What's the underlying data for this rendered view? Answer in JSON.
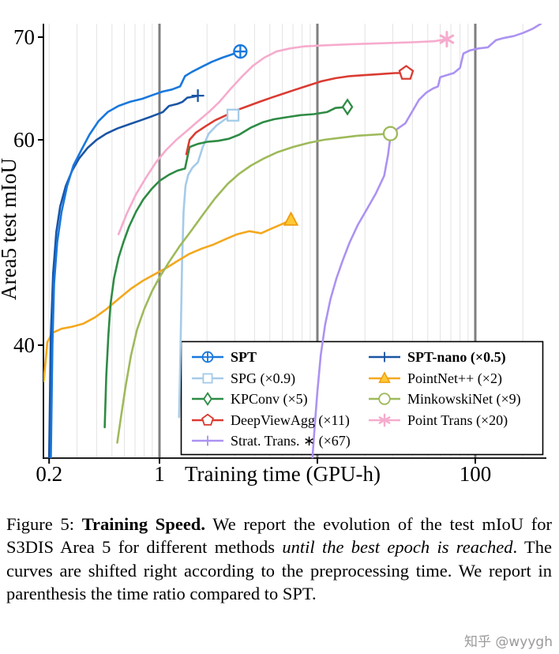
{
  "chart_data": {
    "type": "line",
    "xlabel": "Training time (GPU-h)",
    "ylabel": "Area5 test mIoU",
    "x_scale": "log",
    "x_range": [
      0.184,
      282
    ],
    "y_range": [
      29,
      71.3
    ],
    "x_ticks": [
      {
        "v": 0.2,
        "label": "0.2"
      },
      {
        "v": 1,
        "label": "1"
      },
      {
        "v": 10,
        "label": ""
      },
      {
        "v": 100,
        "label": "100"
      }
    ],
    "y_ticks": [
      {
        "v": 40,
        "label": "40"
      },
      {
        "v": 60,
        "label": "60"
      },
      {
        "v": 70,
        "label": "70"
      }
    ],
    "x_major_gridlines": [
      1,
      10,
      100
    ],
    "grid": "vertical-log",
    "legend_position": "lower-right",
    "colors": {
      "major_grid": "#7f7f7f",
      "minor_grid": "#e3e3e3",
      "axis": "#000000"
    },
    "series": [
      {
        "name": "SPT",
        "legend_label": "SPT",
        "bold": true,
        "color": "#1878dd",
        "marker": "circle-plus",
        "end_marker": true,
        "points": [
          [
            0.205,
            29
          ],
          [
            0.21,
            40
          ],
          [
            0.215,
            46
          ],
          [
            0.225,
            50
          ],
          [
            0.24,
            53
          ],
          [
            0.26,
            55.5
          ],
          [
            0.285,
            57.5
          ],
          [
            0.32,
            59
          ],
          [
            0.36,
            60.5
          ],
          [
            0.41,
            61.8
          ],
          [
            0.47,
            62.7
          ],
          [
            0.55,
            63.3
          ],
          [
            0.65,
            63.7
          ],
          [
            0.78,
            64
          ],
          [
            0.92,
            64.4
          ],
          [
            1.05,
            64.7
          ],
          [
            1.2,
            64.9
          ],
          [
            1.35,
            65.2
          ],
          [
            1.45,
            66.2
          ],
          [
            1.6,
            66.6
          ],
          [
            1.85,
            67.1
          ],
          [
            2.15,
            67.6
          ],
          [
            2.5,
            68
          ],
          [
            2.85,
            68.3
          ],
          [
            3.25,
            68.6
          ]
        ]
      },
      {
        "name": "SPG",
        "legend_label": "SPG (×0.9)",
        "bold": false,
        "color": "#a5cbe9",
        "marker": "square",
        "end_marker": true,
        "points": [
          [
            1.33,
            33
          ],
          [
            1.36,
            40
          ],
          [
            1.39,
            48
          ],
          [
            1.42,
            53
          ],
          [
            1.46,
            55.5
          ],
          [
            1.52,
            56.6
          ],
          [
            1.62,
            57.3
          ],
          [
            1.75,
            57.8
          ],
          [
            1.88,
            59.3
          ],
          [
            2.05,
            60.6
          ],
          [
            2.3,
            61.4
          ],
          [
            2.6,
            62
          ],
          [
            2.92,
            62.4
          ]
        ]
      },
      {
        "name": "KPConv",
        "legend_label": "KPConv (×5)",
        "bold": false,
        "color": "#2e8b44",
        "marker": "diamond",
        "end_marker": true,
        "points": [
          [
            0.45,
            32
          ],
          [
            0.46,
            37
          ],
          [
            0.475,
            41
          ],
          [
            0.49,
            44
          ],
          [
            0.515,
            46.5
          ],
          [
            0.55,
            48.5
          ],
          [
            0.59,
            50
          ],
          [
            0.64,
            51.5
          ],
          [
            0.71,
            53
          ],
          [
            0.79,
            54.2
          ],
          [
            0.89,
            55.2
          ],
          [
            1.0,
            56.0
          ],
          [
            1.15,
            56.6
          ],
          [
            1.3,
            57.0
          ],
          [
            1.45,
            57.2
          ],
          [
            1.55,
            59.3
          ],
          [
            1.75,
            59.6
          ],
          [
            2.0,
            59.8
          ],
          [
            2.35,
            59.9
          ],
          [
            2.75,
            60.1
          ],
          [
            3.2,
            60.5
          ],
          [
            3.8,
            61.2
          ],
          [
            4.5,
            61.7
          ],
          [
            5.3,
            62.0
          ],
          [
            6.4,
            62.2
          ],
          [
            7.8,
            62.4
          ],
          [
            9.5,
            62.5
          ],
          [
            11.5,
            62.7
          ],
          [
            13.0,
            63.1
          ],
          [
            15.5,
            63.2
          ]
        ]
      },
      {
        "name": "DeepViewAgg",
        "legend_label": "DeepViewAgg (×11)",
        "bold": false,
        "color": "#da3b32",
        "marker": "pentagon",
        "end_marker": true,
        "points": [
          [
            1.48,
            58.6
          ],
          [
            1.55,
            60.0
          ],
          [
            1.7,
            60.7
          ],
          [
            1.95,
            61.3
          ],
          [
            2.25,
            61.9
          ],
          [
            2.65,
            62.4
          ],
          [
            3.1,
            62.9
          ],
          [
            3.65,
            63.3
          ],
          [
            4.3,
            63.7
          ],
          [
            5.1,
            64.1
          ],
          [
            6.1,
            64.5
          ],
          [
            7.3,
            64.9
          ],
          [
            8.8,
            65.3
          ],
          [
            10.6,
            65.7
          ],
          [
            13,
            66.0
          ],
          [
            16,
            66.2
          ],
          [
            20,
            66.3
          ],
          [
            25,
            66.4
          ],
          [
            31,
            66.5
          ],
          [
            36.5,
            66.5
          ]
        ]
      },
      {
        "name": "Strat. Trans.",
        "legend_label": "Strat. Trans. ∗ (×67)",
        "bold": false,
        "color": "#ac92f2",
        "marker": "plus",
        "end_marker": false,
        "points": [
          [
            9.3,
            29
          ],
          [
            9.6,
            32
          ],
          [
            10.0,
            35.5
          ],
          [
            10.5,
            39
          ],
          [
            11.2,
            42
          ],
          [
            12.1,
            44.5
          ],
          [
            13.2,
            46.5
          ],
          [
            14.5,
            48.3
          ],
          [
            16,
            50
          ],
          [
            18,
            51.7
          ],
          [
            20.5,
            53.2
          ],
          [
            23.5,
            54.8
          ],
          [
            26.5,
            56.5
          ],
          [
            28,
            58.5
          ],
          [
            29,
            60.3
          ],
          [
            30.5,
            60.8
          ],
          [
            33,
            61.2
          ],
          [
            36,
            61.6
          ],
          [
            40,
            62.8
          ],
          [
            44,
            63.9
          ],
          [
            49,
            64.6
          ],
          [
            54,
            65.0
          ],
          [
            58,
            65.2
          ],
          [
            60,
            66.1
          ],
          [
            66,
            66.3
          ],
          [
            73,
            66.5
          ],
          [
            80,
            67.0
          ],
          [
            84,
            68.4
          ],
          [
            92,
            68.7
          ],
          [
            105,
            68.9
          ],
          [
            120,
            69.0
          ],
          [
            135,
            69.7
          ],
          [
            150,
            69.9
          ],
          [
            175,
            70.1
          ],
          [
            200,
            70.4
          ],
          [
            230,
            70.8
          ],
          [
            260,
            71.3
          ]
        ]
      },
      {
        "name": "SPT-nano",
        "legend_label": "SPT-nano (×0.5)",
        "bold": true,
        "color": "#1a55a5",
        "marker": "plus",
        "end_marker": true,
        "points": [
          [
            0.2,
            29
          ],
          [
            0.205,
            41
          ],
          [
            0.212,
            47
          ],
          [
            0.222,
            51
          ],
          [
            0.235,
            53.5
          ],
          [
            0.255,
            55.5
          ],
          [
            0.28,
            57
          ],
          [
            0.31,
            58.2
          ],
          [
            0.35,
            59.2
          ],
          [
            0.4,
            60.0
          ],
          [
            0.46,
            60.6
          ],
          [
            0.54,
            61.1
          ],
          [
            0.64,
            61.5
          ],
          [
            0.76,
            61.9
          ],
          [
            0.9,
            62.3
          ],
          [
            1.05,
            62.7
          ],
          [
            1.15,
            63.3
          ],
          [
            1.3,
            63.5
          ],
          [
            1.4,
            63.7
          ],
          [
            1.5,
            64.1
          ],
          [
            1.65,
            64.2
          ],
          [
            1.75,
            64.3
          ]
        ]
      },
      {
        "name": "PointNet++",
        "legend_label": "PointNet++ (×2)",
        "bold": false,
        "color": "#f4a81e",
        "marker": "triangle",
        "marker_fill": "#fdc935",
        "marker_edge": "#ef9b10",
        "end_marker": true,
        "points": [
          [
            0.185,
            36.5
          ],
          [
            0.195,
            40.3
          ],
          [
            0.21,
            41.2
          ],
          [
            0.24,
            41.6
          ],
          [
            0.28,
            41.8
          ],
          [
            0.33,
            42.1
          ],
          [
            0.39,
            42.7
          ],
          [
            0.46,
            43.5
          ],
          [
            0.55,
            44.5
          ],
          [
            0.66,
            45.5
          ],
          [
            0.79,
            46.3
          ],
          [
            0.93,
            46.9
          ],
          [
            1.1,
            47.5
          ],
          [
            1.3,
            48.2
          ],
          [
            1.55,
            48.9
          ],
          [
            1.85,
            49.4
          ],
          [
            2.2,
            49.8
          ],
          [
            2.6,
            50.3
          ],
          [
            3.1,
            50.8
          ],
          [
            3.7,
            51.1
          ],
          [
            4.4,
            50.9
          ],
          [
            5.2,
            51.4
          ],
          [
            6.0,
            51.8
          ],
          [
            6.8,
            52.2
          ]
        ]
      },
      {
        "name": "MinkowskiNet",
        "legend_label": "MinkowskiNet (×9)",
        "bold": false,
        "color": "#9eba5a",
        "marker": "circle",
        "end_marker": true,
        "points": [
          [
            0.54,
            30.5
          ],
          [
            0.57,
            33
          ],
          [
            0.61,
            36
          ],
          [
            0.66,
            39
          ],
          [
            0.72,
            41.5
          ],
          [
            0.8,
            43.5
          ],
          [
            0.9,
            45.3
          ],
          [
            1.0,
            46.6
          ],
          [
            1.15,
            48.1
          ],
          [
            1.35,
            49.7
          ],
          [
            1.6,
            51.2
          ],
          [
            1.9,
            52.8
          ],
          [
            2.25,
            54.3
          ],
          [
            2.7,
            55.7
          ],
          [
            3.2,
            56.7
          ],
          [
            3.8,
            57.5
          ],
          [
            4.6,
            58.2
          ],
          [
            5.6,
            58.8
          ],
          [
            7.0,
            59.3
          ],
          [
            8.8,
            59.7
          ],
          [
            11,
            60.0
          ],
          [
            14,
            60.2
          ],
          [
            18,
            60.4
          ],
          [
            23,
            60.5
          ],
          [
            29,
            60.6
          ]
        ]
      },
      {
        "name": "Point Trans",
        "legend_label": "Point Trans (×20)",
        "bold": false,
        "color": "#f6abcd",
        "marker": "star",
        "end_marker": true,
        "points": [
          [
            0.55,
            50.8
          ],
          [
            0.62,
            52.8
          ],
          [
            0.71,
            54.7
          ],
          [
            0.82,
            56.3
          ],
          [
            0.95,
            57.8
          ],
          [
            1.1,
            59.0
          ],
          [
            1.28,
            60.0
          ],
          [
            1.5,
            60.9
          ],
          [
            1.75,
            61.8
          ],
          [
            2.05,
            62.7
          ],
          [
            2.4,
            63.7
          ],
          [
            2.8,
            64.9
          ],
          [
            3.3,
            66.1
          ],
          [
            3.9,
            67.2
          ],
          [
            4.6,
            68.0
          ],
          [
            5.5,
            68.6
          ],
          [
            6.7,
            68.9
          ],
          [
            8.3,
            69.1
          ],
          [
            11,
            69.2
          ],
          [
            16,
            69.3
          ],
          [
            25,
            69.4
          ],
          [
            40,
            69.5
          ],
          [
            55,
            69.6
          ],
          [
            66,
            69.8
          ]
        ]
      }
    ]
  },
  "caption": {
    "prefix": "Figure 5: ",
    "bold": "Training Speed.",
    "body1": " We report the evolution of the test mIoU for S3DIS Area 5 for different methods ",
    "italic": "until the best epoch is reached",
    "body2": ". The curves are shifted right according to the preprocessing time. We report in parenthesis the time ratio compared to SPT."
  },
  "watermark": "知乎 @wyygh"
}
